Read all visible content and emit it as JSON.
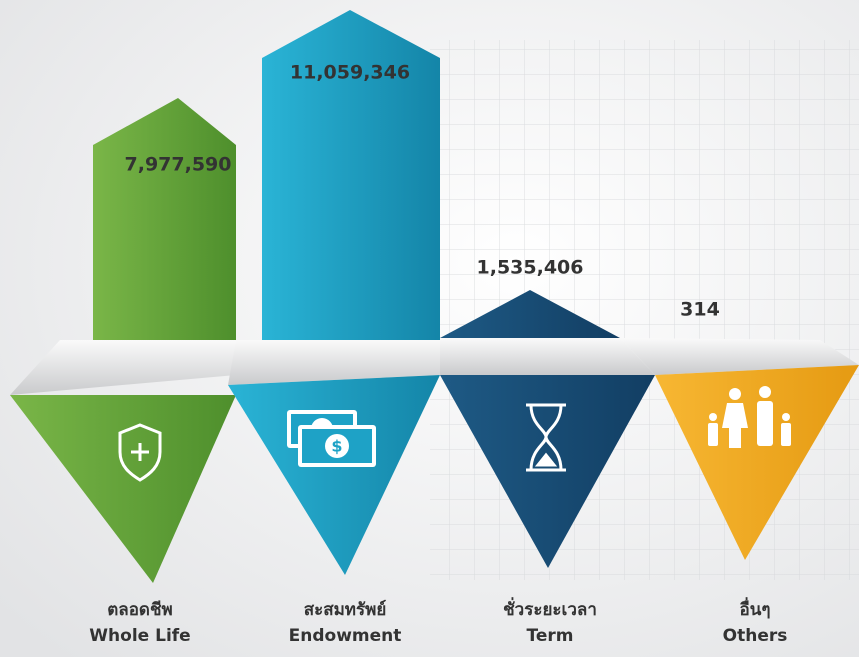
{
  "items": [
    {
      "value": "7,977,590",
      "label_th": "ตลอดชีพ",
      "label_en": "Whole Life"
    },
    {
      "value": "11,059,346",
      "label_th": "สะสมทรัพย์",
      "label_en": "Endowment"
    },
    {
      "value": "1,535,406",
      "label_th": "ชั่วระยะเวลา",
      "label_en": "Term"
    },
    {
      "value": "314",
      "label_th": "อื่นๆ",
      "label_en": "Others"
    }
  ]
}
